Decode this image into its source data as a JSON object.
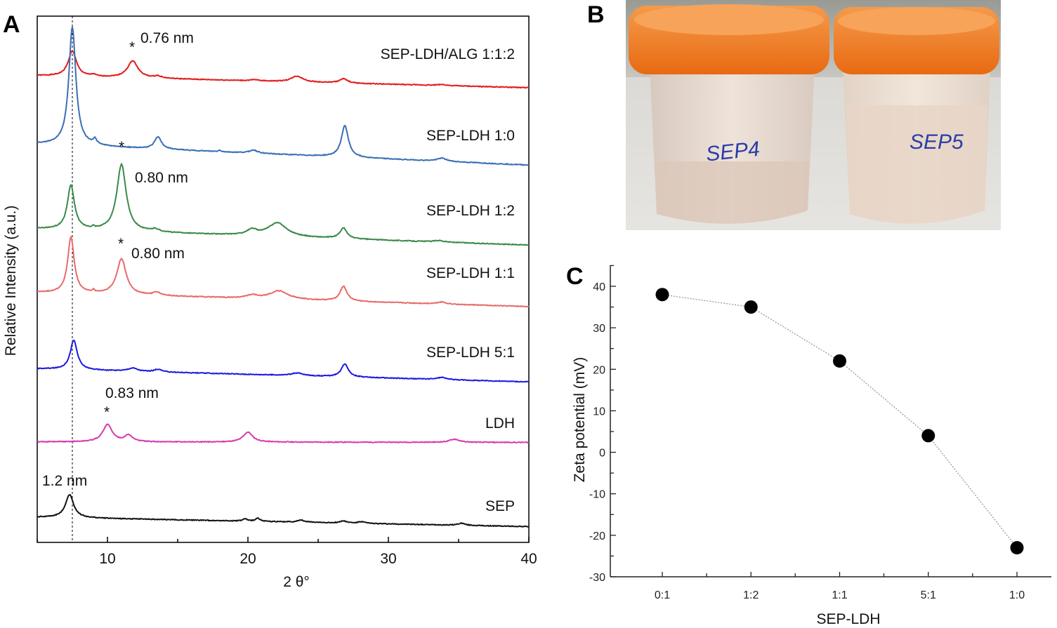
{
  "panels": {
    "a": "A",
    "b": "B",
    "c": "C"
  },
  "photo": {
    "labels": [
      "SEP4",
      "SEP5"
    ],
    "cap_color": "#f07a1e"
  },
  "chart_data": [
    {
      "type": "line",
      "title": "",
      "xlabel": "2 θ°",
      "ylabel": "Relative Intensity (a.u.)",
      "xlim": [
        5,
        40
      ],
      "ylim": [
        0,
        100
      ],
      "xticks": [
        "10",
        "20",
        "30",
        "40"
      ],
      "xtick_values": [
        10,
        20,
        30,
        40
      ],
      "reference_line_x": 7.5,
      "series": [
        {
          "name": "SEP-LDH/ALG 1:1:2",
          "color": "#e31a1c",
          "baseline": [
            88.7,
            86.4
          ],
          "peaks": [
            [
              7.5,
              4.8,
              0.35
            ],
            [
              9.0,
              0.3,
              0.2
            ],
            [
              11.8,
              3.2,
              0.45
            ],
            [
              13.6,
              0.4,
              0.3
            ],
            [
              20.5,
              0.2,
              0.4
            ],
            [
              23.5,
              1.1,
              0.5
            ],
            [
              26.8,
              0.8,
              0.35
            ],
            [
              33.8,
              0.2,
              0.4
            ]
          ]
        },
        {
          "name": "SEP-LDH 1:0",
          "color": "#3a6fb5",
          "baseline": [
            75.7,
            71.7
          ],
          "peaks": [
            [
              7.5,
              22.5,
              0.3
            ],
            [
              9.1,
              1.0,
              0.15
            ],
            [
              13.6,
              2.3,
              0.3
            ],
            [
              18.0,
              0.3,
              0.1
            ],
            [
              20.4,
              0.6,
              0.35
            ],
            [
              26.9,
              6.0,
              0.3
            ],
            [
              33.8,
              0.6,
              0.4
            ]
          ]
        },
        {
          "name": "SEP-LDH 1:2",
          "color": "#3a8a4a",
          "baseline": [
            59.6,
            56.5
          ],
          "peaks": [
            [
              7.4,
              8.4,
              0.3
            ],
            [
              9.0,
              0.3,
              0.1
            ],
            [
              11.0,
              12.7,
              0.4
            ],
            [
              13.4,
              0.5,
              0.3
            ],
            [
              20.3,
              1.0,
              0.45
            ],
            [
              22.1,
              2.6,
              0.8
            ],
            [
              26.8,
              2.0,
              0.3
            ],
            [
              33.6,
              0.3,
              0.4
            ]
          ]
        },
        {
          "name": "SEP-LDH 1:1",
          "color": "#e86a6a",
          "baseline": [
            47.5,
            44.8
          ],
          "peaks": [
            [
              7.4,
              10.6,
              0.28
            ],
            [
              9.0,
              0.4,
              0.1
            ],
            [
              11.0,
              6.8,
              0.4
            ],
            [
              13.5,
              0.6,
              0.3
            ],
            [
              20.3,
              0.6,
              0.45
            ],
            [
              22.2,
              1.6,
              0.8
            ],
            [
              26.8,
              2.8,
              0.3
            ],
            [
              33.8,
              0.4,
              0.4
            ]
          ]
        },
        {
          "name": "SEP-LDH 5:1",
          "color": "#1a1ae0",
          "baseline": [
            33.0,
            30.5
          ],
          "peaks": [
            [
              7.6,
              5.6,
              0.3
            ],
            [
              11.8,
              0.6,
              0.4
            ],
            [
              13.6,
              0.5,
              0.3
            ],
            [
              23.5,
              0.5,
              0.5
            ],
            [
              26.9,
              2.5,
              0.3
            ],
            [
              33.8,
              0.4,
              0.4
            ]
          ]
        },
        {
          "name": "LDH",
          "color": "#d63cb0",
          "baseline": [
            19.1,
            19.0
          ],
          "peaks": [
            [
              10.0,
              3.3,
              0.4
            ],
            [
              11.5,
              1.2,
              0.35
            ],
            [
              20.0,
              1.9,
              0.4
            ],
            [
              34.7,
              0.6,
              0.4
            ]
          ]
        },
        {
          "name": "SEP",
          "color": "#111111",
          "baseline": [
            4.8,
            3.0
          ],
          "peaks": [
            [
              7.3,
              4.4,
              0.35
            ],
            [
              19.8,
              0.4,
              0.2
            ],
            [
              20.7,
              0.6,
              0.2
            ],
            [
              23.8,
              0.4,
              0.3
            ],
            [
              26.8,
              0.4,
              0.3
            ],
            [
              28.1,
              0.3,
              0.3
            ],
            [
              35.2,
              0.4,
              0.3
            ]
          ]
        }
      ],
      "annotations": [
        {
          "text": "0.76 nm",
          "marker": "*"
        },
        {
          "text": "",
          "marker": "*"
        },
        {
          "text": "0.80 nm",
          "marker": ""
        },
        {
          "text": "0.80 nm",
          "marker": "*"
        },
        {
          "text": "0.83 nm",
          "marker": "*"
        },
        {
          "text": "1.2 nm",
          "marker": ""
        }
      ]
    },
    {
      "type": "scatter",
      "title": "",
      "xlabel": "SEP-LDH",
      "ylabel": "Zeta potential (mV)",
      "categories": [
        "0:1",
        "1:2",
        "1:1",
        "5:1",
        "1:0"
      ],
      "values": [
        38,
        35,
        22,
        4,
        -23
      ],
      "ylim": [
        -30,
        45
      ],
      "yticks": [
        "40",
        "30",
        "20",
        "10",
        "0",
        "-10",
        "-20",
        "-30"
      ],
      "ytick_values": [
        40,
        30,
        20,
        10,
        0,
        -10,
        -20,
        -30
      ],
      "connector": "dotted"
    }
  ]
}
